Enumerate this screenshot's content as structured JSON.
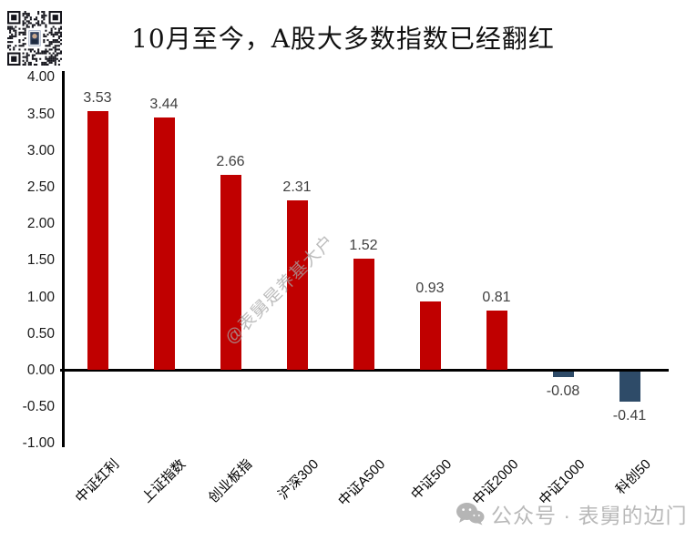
{
  "title": "10月至今，A股大多数指数已经翻红",
  "chart_data": {
    "type": "bar",
    "title": "10月至今，A股大多数指数已经翻红",
    "categories": [
      "中证红利",
      "上证指数",
      "创业板指",
      "沪深300",
      "中证A500",
      "中证500",
      "中证2000",
      "中证1000",
      "科创50"
    ],
    "values": [
      3.53,
      3.44,
      2.66,
      2.31,
      1.52,
      0.93,
      0.81,
      -0.08,
      -0.41
    ],
    "xlabel": "",
    "ylabel": "",
    "ylim": [
      -1.0,
      4.0
    ],
    "ytick_step": 0.5,
    "ytick_decimals": 2,
    "grid": false,
    "legend": false,
    "positive_color": "#C00000",
    "negative_color": "#2E4B68",
    "value_label_color": "#404040"
  },
  "watermarks": {
    "diagonal": "@表舅是养基大户",
    "bottom_text": "公众号 · 表舅的边门"
  },
  "icons": {
    "qr_code": "qr-code",
    "wechat": "wechat-icon"
  }
}
